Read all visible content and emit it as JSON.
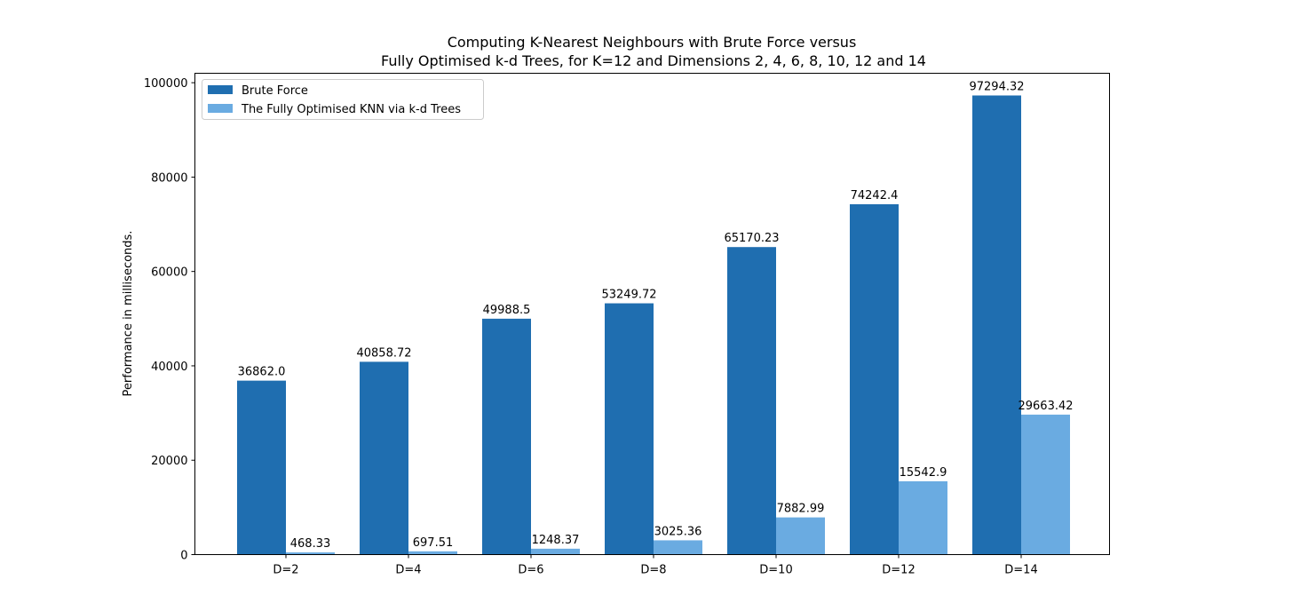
{
  "colors": {
    "brute_force": "#1f6eb0",
    "kd_trees": "#6aabe1"
  },
  "chart_data": {
    "type": "bar",
    "title": "Computing K-Nearest Neighbours with Brute Force versus\nFully Optimised k-d Trees, for K=12 and Dimensions 2, 4, 6, 8, 10, 12 and 14",
    "title_lines": [
      "Computing K-Nearest Neighbours with Brute Force versus",
      "Fully Optimised k-d Trees, for K=12 and Dimensions 2, 4, 6, 8, 10, 12 and 14"
    ],
    "xlabel": "",
    "ylabel": "Performance in milliseconds.",
    "categories": [
      "D=2",
      "D=4",
      "D=6",
      "D=8",
      "D=10",
      "D=12",
      "D=14"
    ],
    "ylim": [
      0,
      102000
    ],
    "yticks": [
      0,
      20000,
      40000,
      60000,
      80000,
      100000
    ],
    "grid": false,
    "legend_position": "top-left",
    "series": [
      {
        "name": "Brute Force",
        "values": [
          36862.0,
          40858.72,
          49988.5,
          53249.72,
          65170.23,
          74242.4,
          97294.32
        ],
        "labels": [
          "36862.0",
          "40858.72",
          "49988.5",
          "53249.72",
          "65170.23",
          "74242.4",
          "97294.32"
        ]
      },
      {
        "name": "The Fully Optimised KNN via k-d Trees",
        "values": [
          468.33,
          697.51,
          1248.37,
          3025.36,
          7882.99,
          15542.9,
          29663.42
        ],
        "labels": [
          "468.33",
          "697.51",
          "1248.37",
          "3025.36",
          "7882.99",
          "15542.9",
          "29663.42"
        ]
      }
    ]
  }
}
